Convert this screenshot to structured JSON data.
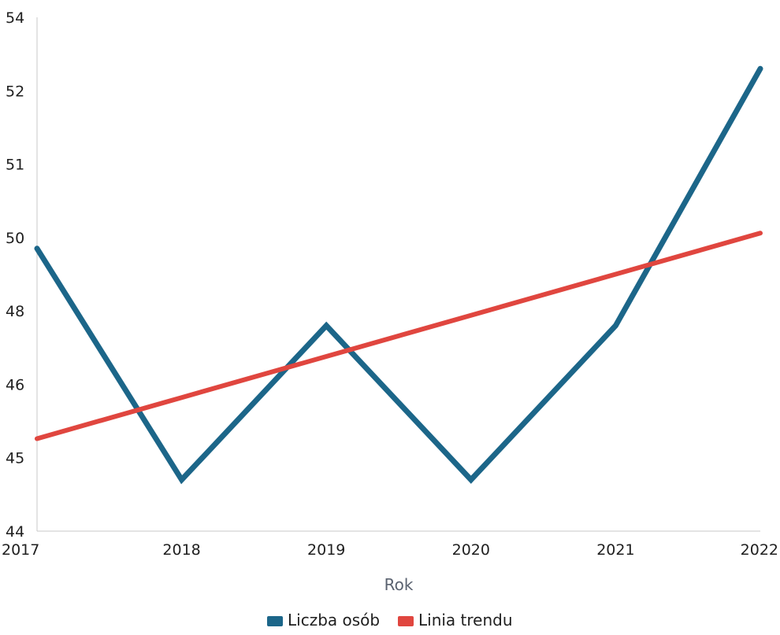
{
  "chart_data": {
    "type": "line",
    "title": "",
    "xlabel": "Rok",
    "ylabel": "",
    "x": [
      "2017",
      "2018",
      "2019",
      "2020",
      "2021",
      "2022"
    ],
    "y_ticks": [
      "54",
      "52",
      "51",
      "50",
      "48",
      "46",
      "45",
      "44"
    ],
    "ylim": [
      44,
      54
    ],
    "grid": false,
    "legend_position": "bottom-center",
    "series": [
      {
        "name": "Liczba osób",
        "color": "#1c6689",
        "values": [
          49.5,
          45.0,
          48.0,
          45.0,
          48.0,
          53.0
        ]
      },
      {
        "name": "Linia trendu",
        "color": "#e0463f",
        "values": [
          45.8,
          46.6,
          47.4,
          48.2,
          49.0,
          49.8
        ]
      }
    ]
  }
}
